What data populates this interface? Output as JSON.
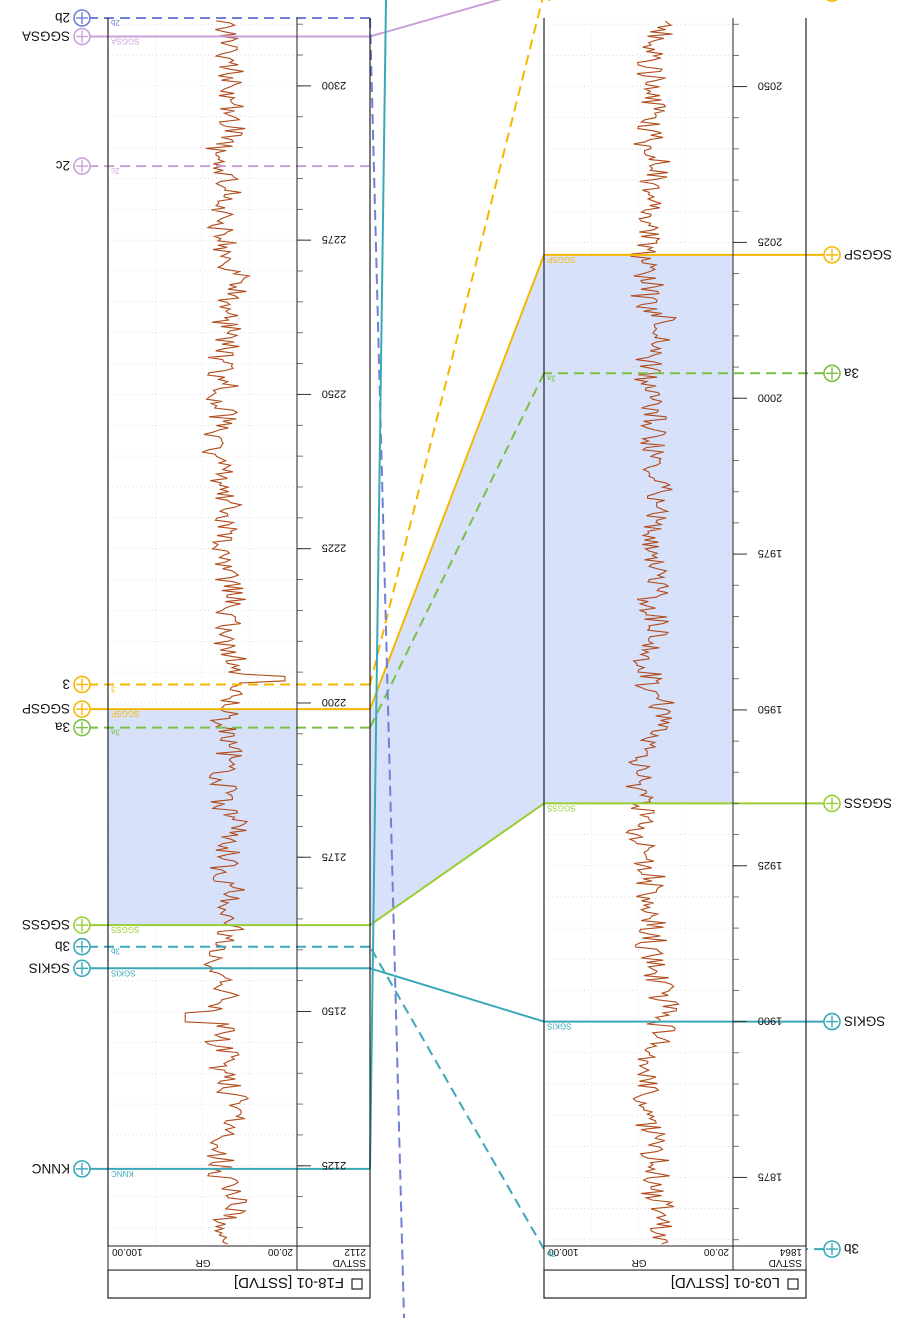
{
  "wells": [
    {
      "id": "left",
      "title": "L03-01 [SSTVD]",
      "depth_header": "SSTVD",
      "gr_label": "GR",
      "scale_min": "20.00",
      "scale_max": "100.00",
      "depth_top_label": "1864",
      "depth_ticks": [
        "1875",
        "1900",
        "1925",
        "1950",
        "1975",
        "2000",
        "2025",
        "2050"
      ],
      "top": 1864,
      "bottom": 2061
    },
    {
      "id": "right",
      "title": "F18-01 [SSTVD]",
      "depth_header": "SSTVD",
      "gr_label": "GR",
      "scale_min": "20.00",
      "scale_max": "100.00",
      "depth_top_label": "2112",
      "depth_ticks": [
        "2125",
        "2150",
        "2175",
        "2200",
        "2225",
        "2250",
        "2275",
        "2300"
      ],
      "top": 2112,
      "bottom": 2311
    }
  ],
  "horizons": [
    {
      "name": "3b",
      "color": "#3aa8b8",
      "style": "dashed",
      "left_depth": 1863.5,
      "right_depth": 2160.5
    },
    {
      "name": "SGKIS",
      "color": "#3aa8b8",
      "style": "solid",
      "left_depth": 1900,
      "right_depth": 2157
    },
    {
      "name": "SGGSS",
      "color": "#9acd32",
      "style": "solid",
      "left_depth": 1935,
      "right_depth": 2164
    },
    {
      "name": "3a",
      "color": "#7ac143",
      "style": "dashed",
      "left_depth": 2004,
      "right_depth": 2196
    },
    {
      "name": "SGGSP",
      "color": "#f5b800",
      "style": "solid",
      "left_depth": 2023,
      "right_depth": 2199
    },
    {
      "name": "3",
      "color": "#f5b800",
      "style": "dashed",
      "left_depth": 2065,
      "right_depth": 2203
    },
    {
      "name": "SGGSA",
      "color": "#c9a0dc",
      "style": "solid",
      "left_depth": 2066,
      "right_depth": 2308
    },
    {
      "name": "2c",
      "color": "#c9a0dc",
      "style": "dashed",
      "left_depth": null,
      "right_depth": 2287
    },
    {
      "name": "2b",
      "color": "#6f7fd6",
      "style": "dashed",
      "left_depth": null,
      "right_depth": 2311
    },
    {
      "name": "KNNC",
      "color": "#3aa8b8",
      "style": "solid",
      "left_depth": null,
      "right_depth": 2124.5
    }
  ],
  "fill": {
    "color": "#8fa8f0"
  },
  "gr_color": "#b04a1a"
}
